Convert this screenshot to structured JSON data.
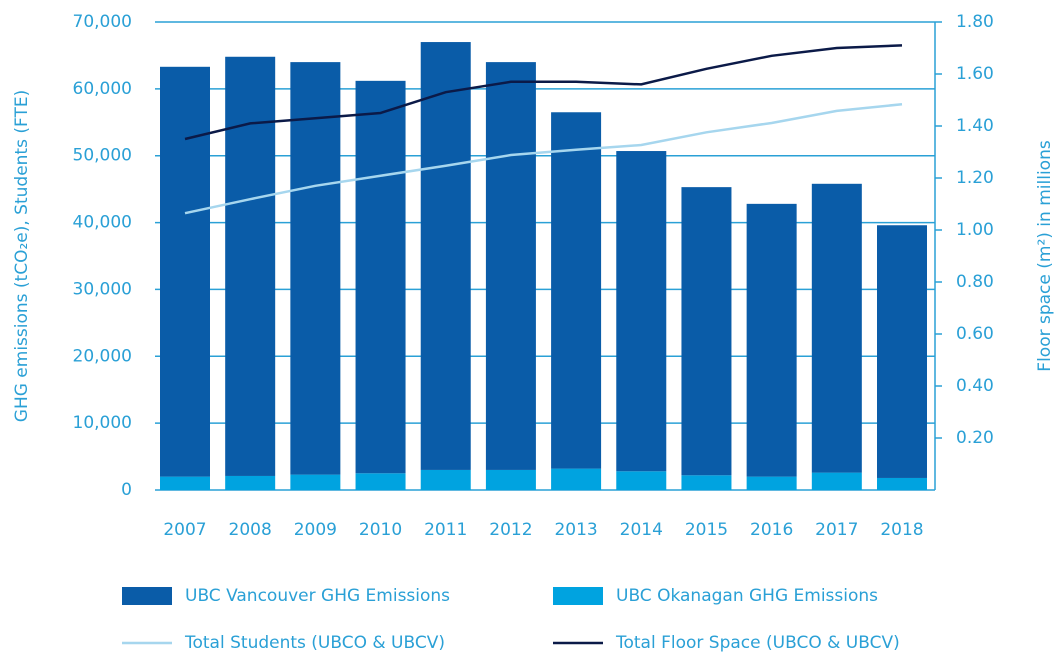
{
  "chart_data": {
    "type": "bar",
    "y_label": "GHG emissions (tCO₂e), Students (FTE)",
    "y2_label": "Floor space (m²) in millions",
    "categories": [
      "2007",
      "2008",
      "2009",
      "2010",
      "2011",
      "2012",
      "2013",
      "2014",
      "2015",
      "2016",
      "2017",
      "2018"
    ],
    "series": [
      {
        "name": "UBC Vancouver GHG Emissions",
        "type": "bar",
        "color": "#0a5ca8",
        "values": [
          61300,
          62700,
          61700,
          58700,
          64000,
          61000,
          53300,
          47900,
          43100,
          40800,
          43200,
          37800
        ]
      },
      {
        "name": "UBC Okanagan GHG Emissions",
        "type": "bar",
        "color": "#00a3e0",
        "values": [
          2000,
          2100,
          2300,
          2500,
          3000,
          3000,
          3200,
          2800,
          2200,
          2000,
          2600,
          1800
        ]
      },
      {
        "name": "Total Students (UBCO & UBCV)",
        "type": "line",
        "color": "#a6d6ee",
        "values": [
          41400,
          43500,
          45500,
          47000,
          48500,
          50100,
          50900,
          51600,
          53500,
          54900,
          56700,
          57700
        ]
      },
      {
        "name": "Total Floor Space (UBCO & UBCV)",
        "type": "line",
        "axis": "y2",
        "color": "#0b1a48",
        "values": [
          1.35,
          1.41,
          1.43,
          1.45,
          1.53,
          1.57,
          1.57,
          1.56,
          1.62,
          1.67,
          1.7,
          1.71
        ]
      }
    ],
    "ylim": [
      0,
      70000
    ],
    "yticks": [
      0,
      {
        "value": 10000,
        "label": "10,000"
      },
      {
        "value": 20000,
        "label": "20,000"
      },
      {
        "value": 30000,
        "label": "30,000"
      },
      {
        "value": 40000,
        "label": "40,000"
      },
      {
        "value": 50000,
        "label": "50,000"
      },
      {
        "value": 60000,
        "label": "60,000"
      },
      {
        "value": 70000,
        "label": "70,000"
      }
    ],
    "y2lim": [
      0,
      1.8
    ],
    "y2ticks": [
      {
        "value": 0.2,
        "label": "0.20"
      },
      {
        "value": 0.4,
        "label": "0.40"
      },
      {
        "value": 0.6,
        "label": "0.60"
      },
      {
        "value": 0.8,
        "label": "0.80"
      },
      {
        "value": 1.0,
        "label": "1.00"
      },
      {
        "value": 1.2,
        "label": "1.20"
      },
      {
        "value": 1.4,
        "label": "1.40"
      },
      {
        "value": 1.6,
        "label": "1.60"
      },
      {
        "value": 1.8,
        "label": "1.80"
      }
    ],
    "grid": true,
    "grid_color": "#2aa0d6"
  }
}
